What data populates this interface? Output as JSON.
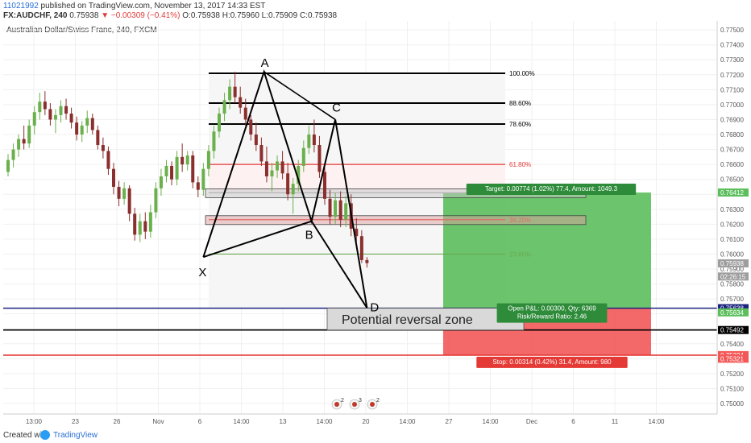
{
  "header": {
    "user": "11021992",
    "published": " published on TradingView.com, November 13, 2017 14:33 EST",
    "symbol": "FX:AUDCHF, 240",
    "last": "0.75938",
    "change": "▼ −0.00309 (−0.41%)",
    "ohlc": "O:0.75938 H:0.75960 L:0.75909 C:0.75938"
  },
  "footer": {
    "created": "Created with",
    "brand": "TradingView"
  },
  "colors": {
    "up": "#6ab04c",
    "down": "#8b2e2e",
    "pattern": "#000000",
    "target_zone": "#5cbf5c",
    "stop_zone": "#f25858",
    "fib_red": "#e53935",
    "fib_green": "#6aa84f",
    "blue_line": "#1a237e"
  },
  "chart_data": {
    "type": "candlestick",
    "title": "Australian Dollar/Swiss Franc, 240, FXCM",
    "ylim": [
      0.7493,
      0.7756
    ],
    "y_ticks": [
      "0.77500",
      "0.77400",
      "0.77300",
      "0.77200",
      "0.77100",
      "0.77000",
      "0.76900",
      "0.76800",
      "0.76700",
      "0.76600",
      "0.76500",
      "0.76400",
      "0.76300",
      "0.76200",
      "0.76100",
      "0.76000",
      "0.75900",
      "0.75800",
      "0.75700",
      "0.75600",
      "0.75500",
      "0.75400",
      "0.75300",
      "0.75200",
      "0.75100",
      "0.75000"
    ],
    "x_ticks": [
      "13:00",
      "23",
      "26",
      "Nov",
      "6",
      "14:00",
      "13",
      "14:00",
      "20",
      "14:00",
      "27",
      "14:00",
      "Dec",
      "6",
      "11",
      "14:00"
    ],
    "price_tags": [
      {
        "value": 0.76412,
        "label": "0.76412",
        "color": "#5cbf5c"
      },
      {
        "value": 0.75938,
        "label": "0.75938",
        "color": "#9e9e9e"
      },
      {
        "value": 0.7585,
        "label": "02:26:15",
        "color": "#9e9e9e"
      },
      {
        "value": 0.75638,
        "label": "0.75638",
        "color": "#1a237e"
      },
      {
        "value": 0.7561,
        "label": "0.75634",
        "color": "#5cbf5c"
      },
      {
        "value": 0.75492,
        "label": "0.75492",
        "color": "#000000"
      },
      {
        "value": 0.75324,
        "label": "0.75324",
        "color": "#f25858"
      },
      {
        "value": 0.753,
        "label": "0.75321",
        "color": "#f25858"
      }
    ],
    "candles": [
      [
        0.7655,
        0.7667,
        0.7652,
        0.7663
      ],
      [
        0.7663,
        0.7674,
        0.7658,
        0.767
      ],
      [
        0.767,
        0.768,
        0.7665,
        0.7677
      ],
      [
        0.7677,
        0.7686,
        0.767,
        0.7674
      ],
      [
        0.7674,
        0.769,
        0.7671,
        0.7686
      ],
      [
        0.7686,
        0.7699,
        0.768,
        0.7695
      ],
      [
        0.7695,
        0.7708,
        0.769,
        0.7702
      ],
      [
        0.7702,
        0.7709,
        0.7693,
        0.7697
      ],
      [
        0.7697,
        0.7701,
        0.7686,
        0.769
      ],
      [
        0.769,
        0.7697,
        0.7681,
        0.7693
      ],
      [
        0.7693,
        0.7703,
        0.7688,
        0.7699
      ],
      [
        0.7699,
        0.7704,
        0.769,
        0.7694
      ],
      [
        0.7694,
        0.7698,
        0.7684,
        0.7688
      ],
      [
        0.7688,
        0.7692,
        0.7676,
        0.768
      ],
      [
        0.768,
        0.7689,
        0.7675,
        0.7686
      ],
      [
        0.7686,
        0.7696,
        0.7681,
        0.7691
      ],
      [
        0.7691,
        0.7694,
        0.768,
        0.7683
      ],
      [
        0.7683,
        0.7686,
        0.767,
        0.7673
      ],
      [
        0.7673,
        0.7678,
        0.7664,
        0.7669
      ],
      [
        0.7669,
        0.7672,
        0.7653,
        0.7657
      ],
      [
        0.7657,
        0.7661,
        0.764,
        0.7645
      ],
      [
        0.7645,
        0.7649,
        0.7632,
        0.7637
      ],
      [
        0.7637,
        0.7648,
        0.7633,
        0.7644
      ],
      [
        0.7644,
        0.7646,
        0.7622,
        0.7627
      ],
      [
        0.7627,
        0.7631,
        0.7609,
        0.7613
      ],
      [
        0.7613,
        0.7627,
        0.7608,
        0.7622
      ],
      [
        0.7622,
        0.7628,
        0.761,
        0.7615
      ],
      [
        0.7615,
        0.7633,
        0.7611,
        0.7628
      ],
      [
        0.7628,
        0.7648,
        0.7624,
        0.7644
      ],
      [
        0.7644,
        0.7657,
        0.7639,
        0.7652
      ],
      [
        0.7652,
        0.7663,
        0.7648,
        0.7659
      ],
      [
        0.7659,
        0.7662,
        0.7646,
        0.765
      ],
      [
        0.765,
        0.7669,
        0.7646,
        0.7665
      ],
      [
        0.7665,
        0.7674,
        0.7655,
        0.766
      ],
      [
        0.766,
        0.7669,
        0.7656,
        0.7666
      ],
      [
        0.7666,
        0.7669,
        0.7644,
        0.7648
      ],
      [
        0.7648,
        0.7652,
        0.7638,
        0.7643
      ],
      [
        0.7643,
        0.7661,
        0.7639,
        0.7657
      ],
      [
        0.7657,
        0.7673,
        0.7652,
        0.7669
      ],
      [
        0.7669,
        0.7686,
        0.7664,
        0.7682
      ],
      [
        0.7682,
        0.7698,
        0.7678,
        0.7694
      ],
      [
        0.7694,
        0.7708,
        0.7689,
        0.7703
      ],
      [
        0.7703,
        0.7717,
        0.7697,
        0.7712
      ],
      [
        0.7712,
        0.7722,
        0.7701,
        0.7705
      ],
      [
        0.7705,
        0.7712,
        0.7694,
        0.7698
      ],
      [
        0.7698,
        0.7704,
        0.7686,
        0.769
      ],
      [
        0.769,
        0.7693,
        0.7676,
        0.768
      ],
      [
        0.768,
        0.7688,
        0.7669,
        0.7673
      ],
      [
        0.7673,
        0.7678,
        0.7659,
        0.7662
      ],
      [
        0.7662,
        0.7672,
        0.7648,
        0.7652
      ],
      [
        0.7652,
        0.7661,
        0.7642,
        0.7656
      ],
      [
        0.7656,
        0.7666,
        0.7651,
        0.7662
      ],
      [
        0.7662,
        0.7669,
        0.765,
        0.7654
      ],
      [
        0.7654,
        0.7661,
        0.7636,
        0.764
      ],
      [
        0.764,
        0.7651,
        0.7627,
        0.7647
      ],
      [
        0.7647,
        0.7663,
        0.7642,
        0.7659
      ],
      [
        0.7659,
        0.7676,
        0.7655,
        0.7671
      ],
      [
        0.7671,
        0.7686,
        0.7667,
        0.768
      ],
      [
        0.768,
        0.769,
        0.7668,
        0.7673
      ],
      [
        0.7673,
        0.7679,
        0.7651,
        0.7655
      ],
      [
        0.7655,
        0.7659,
        0.7633,
        0.7637
      ],
      [
        0.7637,
        0.7643,
        0.762,
        0.7625
      ],
      [
        0.7625,
        0.7641,
        0.762,
        0.7636
      ],
      [
        0.7636,
        0.7642,
        0.7618,
        0.7623
      ],
      [
        0.7623,
        0.7639,
        0.7618,
        0.7634
      ],
      [
        0.7634,
        0.764,
        0.7612,
        0.7617
      ],
      [
        0.7617,
        0.7624,
        0.7608,
        0.7612
      ],
      [
        0.7612,
        0.7616,
        0.7594,
        0.7596
      ],
      [
        0.7596,
        0.7598,
        0.7591,
        0.7594
      ]
    ],
    "pattern": {
      "points": [
        {
          "label": "X",
          "x": 37,
          "y": 0.7598
        },
        {
          "label": "A",
          "x": 48.5,
          "y": 0.7722
        },
        {
          "label": "B",
          "x": 57.5,
          "y": 0.7622
        },
        {
          "label": "C",
          "x": 62,
          "y": 0.769
        },
        {
          "label": "D",
          "x": 68,
          "y": 0.7564
        }
      ]
    },
    "fib_levels": [
      {
        "value": 0.7721,
        "label": "100.00%",
        "color": "#000000"
      },
      {
        "value": 0.7701,
        "label": "88.60%",
        "color": "#000000"
      },
      {
        "value": 0.7687,
        "label": "78.60%",
        "color": "#000000"
      },
      {
        "value": 0.766,
        "label": "61.80%",
        "color": "#e53935"
      },
      {
        "value": 0.7641,
        "label": "50.00%",
        "color": "#9e9e9e"
      },
      {
        "value": 0.7623,
        "label": "38.20%",
        "color": "#e53935"
      },
      {
        "value": 0.76,
        "label": "23.60%",
        "color": "#6aa84f"
      }
    ],
    "horizontal_lines": [
      {
        "value": 0.75638,
        "color": "#1a237e"
      },
      {
        "value": 0.75492,
        "color": "#000000"
      },
      {
        "value": 0.75324,
        "color": "#e53935"
      }
    ],
    "position": {
      "entry": 0.75638,
      "target": 0.76412,
      "stop": 0.75324,
      "target_label": "Target: 0.00774 (1.02%) 77.4, Amount: 1049.3",
      "open_label_1": "Open P&L: 0.00300, Qty: 6369",
      "open_label_2": "Risk/Reward Ratio: 2.46",
      "stop_label": "Stop: 0.00314 (0.42%) 31.4, Amount: 980"
    },
    "annotation": "Potential reversal zone",
    "event_markers": [
      "2",
      "3",
      "2"
    ]
  }
}
